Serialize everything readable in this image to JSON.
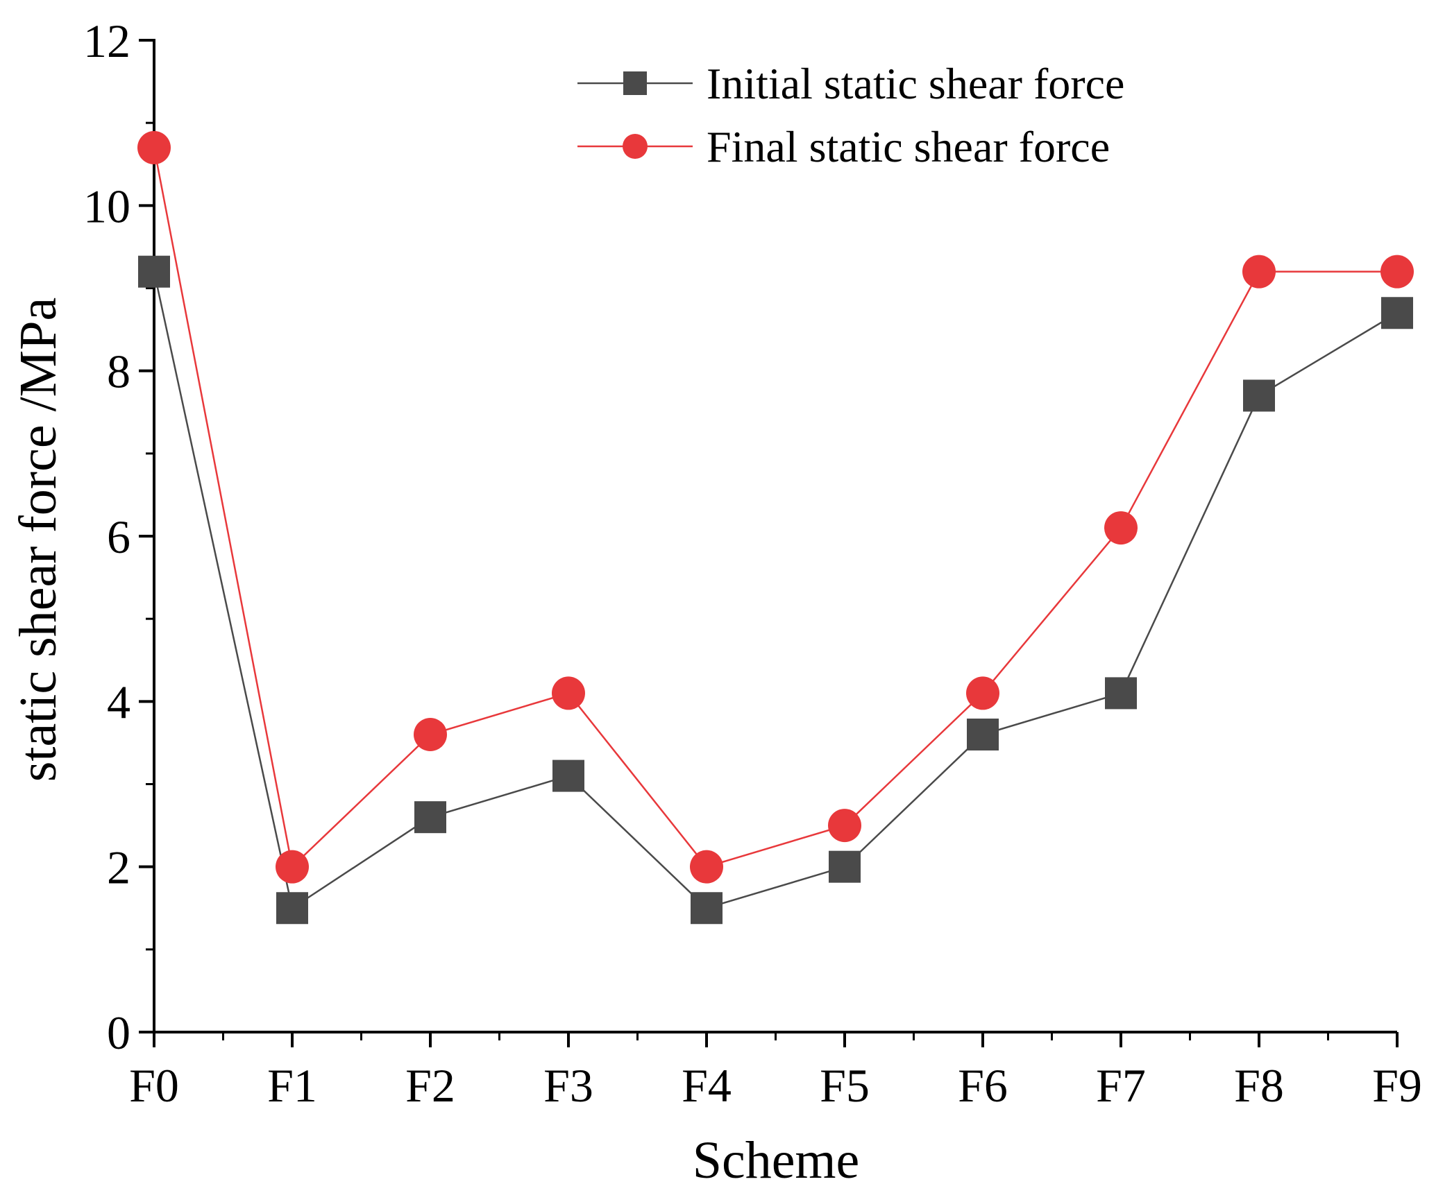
{
  "chart_data": {
    "type": "line",
    "title": "",
    "xlabel": "Scheme",
    "ylabel": "static shear force /MPa",
    "categories": [
      "F0",
      "F1",
      "F2",
      "F3",
      "F4",
      "F5",
      "F6",
      "F7",
      "F8",
      "F9"
    ],
    "ylim": [
      0,
      12
    ],
    "yticks": [
      0,
      2,
      4,
      6,
      8,
      10,
      12
    ],
    "grid": false,
    "legend_position": "top-right",
    "series": [
      {
        "name": "Initial static shear force",
        "marker": "square",
        "color": "#4a4a4a",
        "values": [
          9.2,
          1.5,
          2.6,
          3.1,
          1.5,
          2.0,
          3.6,
          4.1,
          7.7,
          8.7
        ]
      },
      {
        "name": "Final static shear force",
        "marker": "circle",
        "color": "#e8383b",
        "values": [
          10.7,
          2.0,
          3.6,
          4.1,
          2.0,
          2.5,
          4.1,
          6.1,
          9.2,
          9.2
        ]
      }
    ]
  }
}
